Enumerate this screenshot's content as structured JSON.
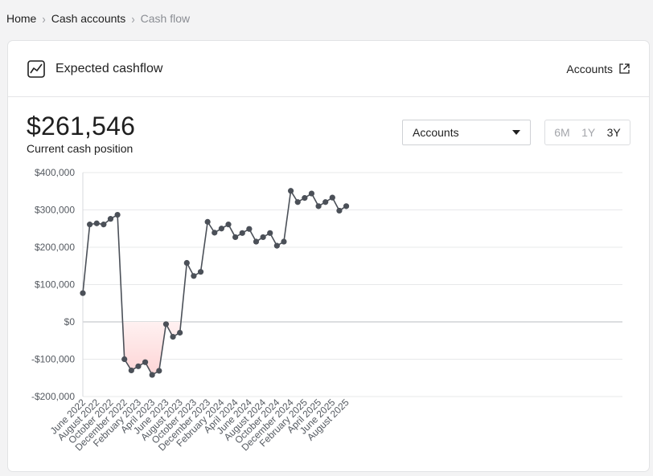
{
  "breadcrumb": {
    "home": "Home",
    "cash_accounts": "Cash accounts",
    "current": "Cash flow"
  },
  "card": {
    "title": "Expected cashflow",
    "accounts_link": "Accounts",
    "amount": "$261,546",
    "amount_label": "Current cash position",
    "select_value": "Accounts",
    "ranges": [
      "6M",
      "1Y",
      "3Y"
    ],
    "active_range": "3Y"
  },
  "colors": {
    "line": "#4b5058",
    "negative_fill": "#fdd5d6"
  },
  "chart_data": {
    "type": "line",
    "title": "Expected cashflow",
    "xlabel": "",
    "ylabel": "",
    "ylim": [
      -200000,
      400000
    ],
    "yticks": [
      {
        "value": 400000,
        "label": "$400,000"
      },
      {
        "value": 300000,
        "label": "$300,000"
      },
      {
        "value": 200000,
        "label": "$200,000"
      },
      {
        "value": 100000,
        "label": "$100,000"
      },
      {
        "value": 0,
        "label": "$0"
      },
      {
        "value": -100000,
        "label": "-$100,000"
      },
      {
        "value": -200000,
        "label": "-$200,000"
      }
    ],
    "xtick_labels": [
      "June 2022",
      "August 2022",
      "October 2022",
      "December 2022",
      "February 2023",
      "April 2023",
      "June 2023",
      "August 2023",
      "October 2023",
      "December 2023",
      "February 2024",
      "April 2024",
      "June 2024",
      "August 2024",
      "October 2024",
      "December 2024",
      "February 2025",
      "April 2025",
      "June 2025",
      "August 2025"
    ],
    "categories": [
      "June 2022",
      "July 2022",
      "August 2022",
      "September 2022",
      "October 2022",
      "November 2022",
      "December 2022",
      "January 2023",
      "February 2023",
      "March 2023",
      "April 2023",
      "May 2023",
      "June 2023",
      "July 2023",
      "August 2023",
      "September 2023",
      "October 2023",
      "November 2023",
      "December 2023",
      "January 2024",
      "February 2024",
      "March 2024",
      "April 2024",
      "May 2024",
      "June 2024",
      "July 2024",
      "August 2024",
      "September 2024",
      "October 2024",
      "November 2024",
      "December 2024",
      "January 2025",
      "February 2025",
      "March 2025",
      "April 2025",
      "May 2025",
      "June 2025",
      "July 2025",
      "August 2025"
    ],
    "series": [
      {
        "name": "Expected cashflow",
        "values": [
          77000,
          261000,
          264000,
          261000,
          276000,
          287000,
          -100000,
          -130000,
          -119000,
          -108000,
          -142000,
          -131000,
          -6000,
          -40000,
          -29000,
          158000,
          123000,
          134000,
          268000,
          239000,
          250000,
          261000,
          227000,
          238000,
          249000,
          215000,
          227000,
          238000,
          204000,
          215000,
          351000,
          321000,
          332000,
          344000,
          310000,
          321000,
          333000,
          298000,
          310000
        ]
      }
    ]
  }
}
